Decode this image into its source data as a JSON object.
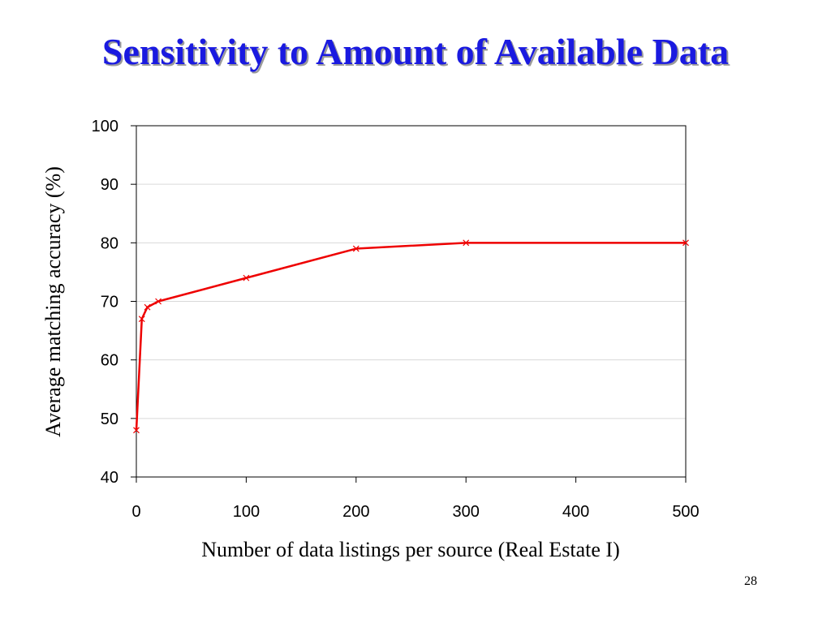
{
  "slide": {
    "title": "Sensitivity to Amount of Available Data",
    "page_number": "28"
  },
  "chart_data": {
    "type": "line",
    "title": "",
    "xlabel": "Number of data listings per source (Real Estate I)",
    "ylabel": "Average matching accuracy (%)",
    "xlim": [
      0,
      500
    ],
    "ylim": [
      40,
      100
    ],
    "xticks": [
      0,
      100,
      200,
      300,
      400,
      500
    ],
    "yticks": [
      40,
      50,
      60,
      70,
      80,
      90,
      100
    ],
    "grid": "horizontal",
    "legend": "none",
    "series": [
      {
        "color": "#ee0000",
        "marker": "x",
        "x": [
          0,
          5,
          10,
          20,
          100,
          200,
          300,
          500
        ],
        "y": [
          48,
          67,
          69,
          70,
          74,
          79,
          80,
          80
        ]
      }
    ]
  }
}
